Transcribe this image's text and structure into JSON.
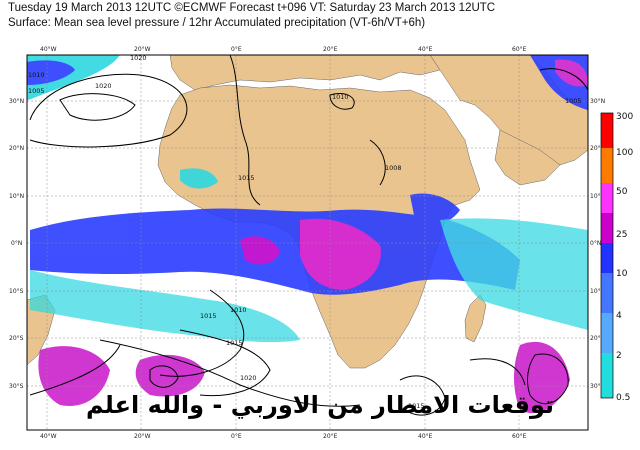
{
  "header": {
    "line1": "Tuesday 19 March 2013 12UTC ©ECMWF Forecast t+096 VT: Saturday 23 March 2013 12UTC",
    "line2": "Surface: Mean sea level pressure / 12hr Accumulated precipitation (VT-6h/VT+6h)"
  },
  "map": {
    "lon_top": [
      "40°W",
      "20°W",
      "0°E",
      "20°E",
      "40°E",
      "60°E"
    ],
    "lon_bottom": [
      "40°W",
      "20°W",
      "0°E",
      "20°E",
      "40°E",
      "60°E"
    ],
    "lat_left": [
      "30°N",
      "20°N",
      "10°N",
      "0°N",
      "10°S",
      "20°S",
      "30°S"
    ],
    "lat_right": [
      "30°N",
      "20°N",
      "10°N",
      "0°N",
      "10°S",
      "20°S",
      "30°S"
    ],
    "isobars": [
      "1020",
      "1010",
      "1005",
      "1010",
      "1015",
      "1020",
      "1015",
      "1020",
      "1015",
      "1015",
      "1010",
      "1008",
      "1005"
    ],
    "colors": {
      "land": "#e9c48f",
      "sea": "#ffffff",
      "isobar": "#000000",
      "grid": "#8a8a8a"
    }
  },
  "colorbar": {
    "ticks": [
      "300",
      "100",
      "50",
      "25",
      "10",
      "4",
      "2",
      "0.5"
    ],
    "colors": [
      "#ff0000",
      "#ff7b00",
      "#ff33ff",
      "#cc00cc",
      "#2233ff",
      "#4477ff",
      "#55aaff",
      "#22dddd"
    ]
  },
  "caption": "توقعات الامطار من الاوربي - والله اعلم"
}
